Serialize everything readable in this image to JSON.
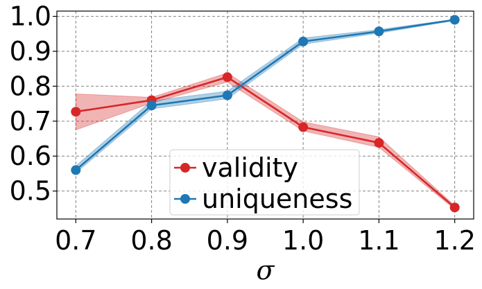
{
  "chart_data": {
    "type": "line",
    "x": [
      0.7,
      0.8,
      0.9,
      1.0,
      1.1,
      1.2
    ],
    "x_tick_labels": [
      "0.7",
      "0.8",
      "0.9",
      "1.0",
      "1.1",
      "1.2"
    ],
    "y_tick_values": [
      0.5,
      0.6,
      0.7,
      0.8,
      0.9,
      1.0
    ],
    "y_tick_labels": [
      "0.5",
      "0.6",
      "0.7",
      "0.8",
      "0.9",
      "1.0"
    ],
    "xlabel": "σ",
    "ylabel": "",
    "title": "",
    "xlim": [
      0.675,
      1.225
    ],
    "ylim": [
      0.42,
      1.015
    ],
    "grid": true,
    "legend_position": "bottom-center",
    "series": [
      {
        "name": "validity",
        "color": "#d62728",
        "values": [
          0.727,
          0.76,
          0.826,
          0.683,
          0.638,
          0.453
        ],
        "band_low": [
          0.675,
          0.752,
          0.812,
          0.672,
          0.625,
          0.448
        ],
        "band_high": [
          0.778,
          0.768,
          0.838,
          0.698,
          0.655,
          0.458
        ]
      },
      {
        "name": "uniqueness",
        "color": "#1f77b4",
        "values": [
          0.56,
          0.745,
          0.774,
          0.928,
          0.957,
          0.99
        ],
        "band_low": [
          0.552,
          0.735,
          0.764,
          0.92,
          0.952,
          0.988
        ],
        "band_high": [
          0.572,
          0.758,
          0.786,
          0.938,
          0.962,
          0.992
        ]
      }
    ]
  }
}
